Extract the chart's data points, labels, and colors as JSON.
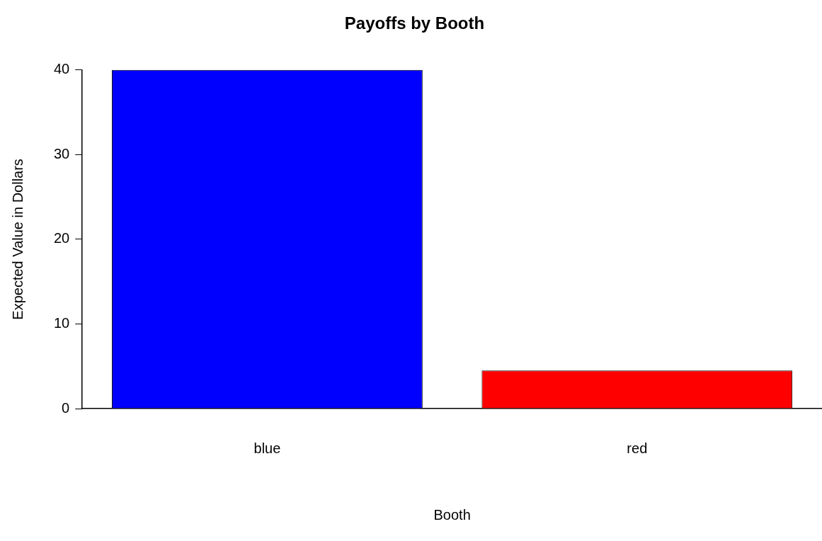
{
  "chart_data": {
    "type": "bar",
    "title": "Payoffs by Booth",
    "xlabel": "Booth",
    "ylabel": "Expected Value in Dollars",
    "categories": [
      "blue",
      "red"
    ],
    "series": [
      {
        "color": null,
        "values": [
          40,
          4.5
        ]
      }
    ],
    "colors": [
      "#0000ff",
      "#ff0000"
    ],
    "ylim": [
      0,
      40
    ],
    "yticks": [
      0,
      10,
      20,
      30,
      40
    ],
    "grid": false,
    "legend": false
  }
}
